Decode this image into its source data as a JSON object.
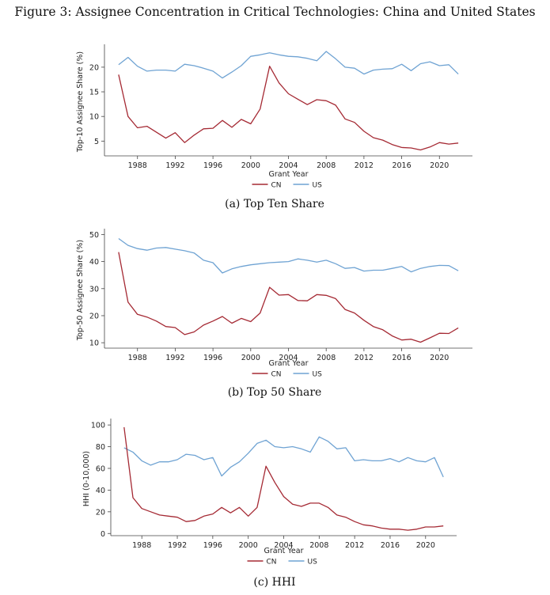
{
  "figure_title": "Figure 3: Assignee Concentration in Critical Technologies: China and United States",
  "colors": {
    "CN": "#a52a34",
    "US": "#6fa3d3"
  },
  "chart_data": [
    {
      "type": "line",
      "caption": "(a) Top Ten Share",
      "xlabel": "Grant Year",
      "ylabel": "Top-10 Assignee Share (%)",
      "xlim": [
        1984.5,
        2023.5
      ],
      "ylim": [
        2,
        24
      ],
      "xticks": [
        1988,
        1992,
        1996,
        2000,
        2004,
        2008,
        2012,
        2016,
        2020
      ],
      "yticks": [
        5,
        10,
        15,
        20
      ],
      "legend": "bottom-center",
      "x": [
        1986,
        1987,
        1988,
        1989,
        1990,
        1991,
        1992,
        1993,
        1994,
        1995,
        1996,
        1997,
        1998,
        1999,
        2000,
        2001,
        2002,
        2003,
        2004,
        2005,
        2006,
        2007,
        2008,
        2009,
        2010,
        2011,
        2012,
        2013,
        2014,
        2015,
        2016,
        2017,
        2018,
        2019,
        2020,
        2021,
        2022
      ],
      "series": [
        {
          "name": "CN",
          "values": [
            18.5,
            10.0,
            7.7,
            8.0,
            6.8,
            5.6,
            6.7,
            4.7,
            6.2,
            7.5,
            7.6,
            9.2,
            7.8,
            9.4,
            8.5,
            11.5,
            20.2,
            16.8,
            14.6,
            13.5,
            12.4,
            13.4,
            13.2,
            12.3,
            9.5,
            8.8,
            7.0,
            5.7,
            5.2,
            4.3,
            3.7,
            3.6,
            3.2,
            3.8,
            4.7,
            4.4,
            4.6
          ]
        },
        {
          "name": "US",
          "values": [
            20.5,
            22.0,
            20.2,
            19.2,
            19.4,
            19.4,
            19.2,
            20.6,
            20.3,
            19.8,
            19.2,
            17.8,
            19.0,
            20.3,
            22.2,
            22.5,
            22.9,
            22.5,
            22.2,
            22.1,
            21.8,
            21.3,
            23.2,
            21.7,
            20.0,
            19.8,
            18.6,
            19.4,
            19.6,
            19.7,
            20.6,
            19.3,
            20.7,
            21.1,
            20.3,
            20.5,
            18.6
          ]
        }
      ]
    },
    {
      "type": "line",
      "caption": "(b) Top 50 Share",
      "xlabel": "Grant Year",
      "ylabel": "Top-50 Assignee Share (%)",
      "xlim": [
        1984.5,
        2023.5
      ],
      "ylim": [
        8,
        51
      ],
      "xticks": [
        1988,
        1992,
        1996,
        2000,
        2004,
        2008,
        2012,
        2016,
        2020
      ],
      "yticks": [
        10,
        20,
        30,
        40,
        50
      ],
      "legend": "bottom-center",
      "x": [
        1986,
        1987,
        1988,
        1989,
        1990,
        1991,
        1992,
        1993,
        1994,
        1995,
        1996,
        1997,
        1998,
        1999,
        2000,
        2001,
        2002,
        2003,
        2004,
        2005,
        2006,
        2007,
        2008,
        2009,
        2010,
        2011,
        2012,
        2013,
        2014,
        2015,
        2016,
        2017,
        2018,
        2019,
        2020,
        2021,
        2022
      ],
      "series": [
        {
          "name": "CN",
          "values": [
            43.5,
            25.0,
            20.5,
            19.5,
            18.0,
            16.0,
            15.6,
            13.0,
            14.0,
            16.5,
            18.0,
            19.7,
            17.2,
            19.0,
            17.8,
            21.0,
            30.5,
            27.6,
            27.8,
            25.6,
            25.5,
            27.8,
            27.5,
            26.3,
            22.3,
            21.0,
            18.3,
            16.0,
            14.8,
            12.5,
            11.0,
            11.3,
            10.2,
            11.8,
            13.5,
            13.4,
            15.5
          ]
        },
        {
          "name": "US",
          "values": [
            48.5,
            46.0,
            44.8,
            44.2,
            45.0,
            45.2,
            44.6,
            44.0,
            43.2,
            40.5,
            39.6,
            35.8,
            37.3,
            38.2,
            38.8,
            39.2,
            39.6,
            39.8,
            40.0,
            41.0,
            40.5,
            39.8,
            40.5,
            39.2,
            37.5,
            37.8,
            36.5,
            36.8,
            36.8,
            37.5,
            38.2,
            36.2,
            37.5,
            38.2,
            38.6,
            38.5,
            36.6
          ]
        }
      ]
    },
    {
      "type": "line",
      "caption": "(c) HHI",
      "xlabel": "Grant Year",
      "ylabel": "HHI (0-10,000)",
      "xlim": [
        1984.5,
        2023.5
      ],
      "ylim": [
        -2,
        103
      ],
      "xticks": [
        1988,
        1992,
        1996,
        2000,
        2004,
        2008,
        2012,
        2016,
        2020
      ],
      "yticks": [
        0,
        20,
        40,
        60,
        80,
        100
      ],
      "legend": "bottom-center",
      "x": [
        1986,
        1987,
        1988,
        1989,
        1990,
        1991,
        1992,
        1993,
        1994,
        1995,
        1996,
        1997,
        1998,
        1999,
        2000,
        2001,
        2002,
        2003,
        2004,
        2005,
        2006,
        2007,
        2008,
        2009,
        2010,
        2011,
        2012,
        2013,
        2014,
        2015,
        2016,
        2017,
        2018,
        2019,
        2020,
        2021,
        2022
      ],
      "series": [
        {
          "name": "CN",
          "values": [
            98,
            33,
            23,
            20,
            17,
            16,
            15,
            11,
            12,
            16,
            18,
            24,
            19,
            24,
            16,
            24,
            62,
            47,
            34,
            27,
            25,
            28,
            28,
            24,
            17,
            15,
            11,
            8,
            7,
            5,
            4,
            4,
            3,
            4,
            6,
            6,
            7
          ]
        },
        {
          "name": "US",
          "values": [
            79,
            75,
            67,
            63,
            66,
            66,
            68,
            73,
            72,
            68,
            70,
            53,
            61,
            66,
            74,
            83,
            86,
            80,
            79,
            80,
            78,
            75,
            89,
            85,
            78,
            79,
            67,
            68,
            67,
            67,
            69,
            66,
            70,
            67,
            66,
            70,
            52
          ]
        }
      ]
    }
  ]
}
